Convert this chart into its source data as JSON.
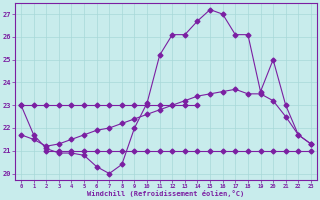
{
  "xlabel": "Windchill (Refroidissement éolien,°C)",
  "background_color": "#c8ecec",
  "line_color": "#7b1fa2",
  "grid_color": "#a8d8d8",
  "xlim": [
    -0.5,
    23.5
  ],
  "ylim": [
    19.7,
    27.5
  ],
  "yticks": [
    20,
    21,
    22,
    23,
    24,
    25,
    26,
    27
  ],
  "xticks": [
    0,
    1,
    2,
    3,
    4,
    5,
    6,
    7,
    8,
    9,
    10,
    11,
    12,
    13,
    14,
    15,
    16,
    17,
    18,
    19,
    20,
    21,
    22,
    23
  ],
  "line_horiz1_x": [
    0,
    1,
    2,
    3,
    4,
    5,
    6,
    7,
    8,
    9,
    10,
    11,
    12,
    13,
    14
  ],
  "line_horiz1_y": [
    23,
    23,
    23,
    23,
    23,
    23,
    23,
    23,
    23,
    23,
    23,
    23,
    23,
    23,
    23
  ],
  "line_horiz2_x": [
    2,
    3,
    4,
    5,
    6,
    7,
    8,
    9,
    10,
    11,
    12,
    13,
    14,
    15,
    16,
    17,
    18,
    19,
    20,
    21,
    22,
    23
  ],
  "line_horiz2_y": [
    21,
    21,
    21,
    21,
    21,
    21,
    21,
    21,
    21,
    21,
    21,
    21,
    21,
    21,
    21,
    21,
    21,
    21,
    21,
    21,
    21,
    21
  ],
  "line_main_x": [
    0,
    1,
    2,
    3,
    4,
    5,
    6,
    7,
    8,
    9,
    10,
    11,
    12,
    13,
    14,
    15,
    16,
    17,
    18,
    19,
    20,
    21,
    22,
    23
  ],
  "line_main_y": [
    23.0,
    21.7,
    21.1,
    20.9,
    20.9,
    20.8,
    20.3,
    20.0,
    20.4,
    22.0,
    23.1,
    25.2,
    26.1,
    26.1,
    26.7,
    27.2,
    27.0,
    26.1,
    26.1,
    23.6,
    25.0,
    23.0,
    21.7,
    21.3
  ],
  "line_trend_x": [
    0,
    1,
    2,
    3,
    4,
    5,
    6,
    7,
    8,
    9,
    10,
    11,
    12,
    13,
    14,
    15,
    16,
    17,
    18,
    19,
    20,
    21,
    22,
    23
  ],
  "line_trend_y": [
    21.7,
    21.5,
    21.2,
    21.3,
    21.5,
    21.7,
    21.9,
    22.0,
    22.2,
    22.4,
    22.6,
    22.8,
    23.0,
    23.2,
    23.4,
    23.5,
    23.6,
    23.7,
    23.5,
    23.5,
    23.2,
    22.5,
    21.7,
    21.3
  ]
}
